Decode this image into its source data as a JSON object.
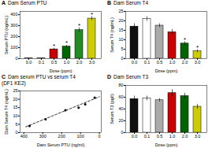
{
  "chart_data": [
    {
      "type": "bar",
      "title": "Dam Serum PTU",
      "xlabel": "Dose (ppm)",
      "ylabel": "Serum PTU (ng/mL)",
      "categories": [
        "0.0",
        "0.1",
        "0.5",
        "1.0",
        "2.0",
        "3.0"
      ],
      "values": [
        2,
        2,
        85,
        110,
        260,
        365
      ],
      "errors": [
        1,
        1,
        10,
        12,
        20,
        18
      ],
      "colors": [
        "#aaaaaa",
        "#aaaaaa",
        "#cc0000",
        "#006400",
        "#228B22",
        "#cccc00"
      ],
      "ylim": [
        0,
        430
      ],
      "yticks": [
        0,
        100,
        200,
        300,
        400
      ],
      "grid": false,
      "annotations": [
        {
          "text": "A"
        },
        {
          "text": "*",
          "category": "0.5"
        },
        {
          "text": "*",
          "category": "1.0"
        },
        {
          "text": "*",
          "category": "2.0"
        },
        {
          "text": "*",
          "category": "3.0"
        }
      ]
    },
    {
      "type": "bar",
      "title": "Dam Serum T4",
      "xlabel": "Dose (ppm)",
      "ylabel": "Serum T4 (ng/mL)",
      "categories": [
        "0.0",
        "0.1",
        "0.5",
        "1.0",
        "2.0",
        "3.0"
      ],
      "values": [
        17,
        21,
        17.5,
        14,
        8,
        4
      ],
      "errors": [
        1.5,
        1.2,
        1.0,
        1.5,
        1.0,
        0.8
      ],
      "colors": [
        "#111111",
        "#ffffff",
        "#aaaaaa",
        "#cc0000",
        "#006400",
        "#cccc00"
      ],
      "ylim": [
        0,
        25
      ],
      "yticks": [
        0,
        5,
        10,
        15,
        20,
        25
      ],
      "grid": false,
      "annotations": [
        {
          "text": "B"
        },
        {
          "text": "*",
          "category": "2.0"
        },
        {
          "text": "*",
          "category": "3.0"
        }
      ]
    },
    {
      "type": "scatter",
      "title": "Dam serum PTU vs serum T4",
      "subtitle": "(DF1 KE2)",
      "xlabel": "Dam Serum PTU (ng/ml)",
      "ylabel": "Dam Serum T4 (ng/mL)",
      "series": [
        {
          "type": "scatter",
          "color": "black",
          "x": [
            370,
            285,
            180,
            110,
            75,
            25
          ],
          "values": [
            4,
            8,
            13.5,
            15,
            17,
            21
          ]
        },
        {
          "type": "line",
          "color": "black",
          "line_style": "dashed",
          "x": [
            390,
            0
          ],
          "values": [
            3.5,
            21.5
          ]
        }
      ],
      "xlim": [
        420,
        -10
      ],
      "xticks": [
        400,
        300,
        200,
        100,
        0
      ],
      "ylim": [
        0,
        25
      ],
      "yticks": [
        0,
        5,
        10,
        15,
        20,
        25
      ],
      "grid": false,
      "annotations": [
        {
          "text": "C"
        }
      ]
    },
    {
      "type": "bar",
      "title": "Dam Serum T3",
      "xlabel": "Dose (ppm)",
      "ylabel": "Serum T3 (pg/I)",
      "categories": [
        "0.0",
        "0.1",
        "0.5",
        "1.0",
        "2.0",
        "3.0"
      ],
      "values": [
        57,
        58,
        55,
        67,
        62,
        44
      ],
      "errors": [
        5,
        4,
        3,
        6,
        5,
        4
      ],
      "colors": [
        "#111111",
        "#ffffff",
        "#aaaaaa",
        "#cc0000",
        "#006400",
        "#cccc00"
      ],
      "ylim": [
        0,
        80
      ],
      "yticks": [
        0,
        20,
        40,
        60,
        80
      ],
      "grid": false,
      "annotations": [
        {
          "text": "D"
        }
      ]
    }
  ]
}
